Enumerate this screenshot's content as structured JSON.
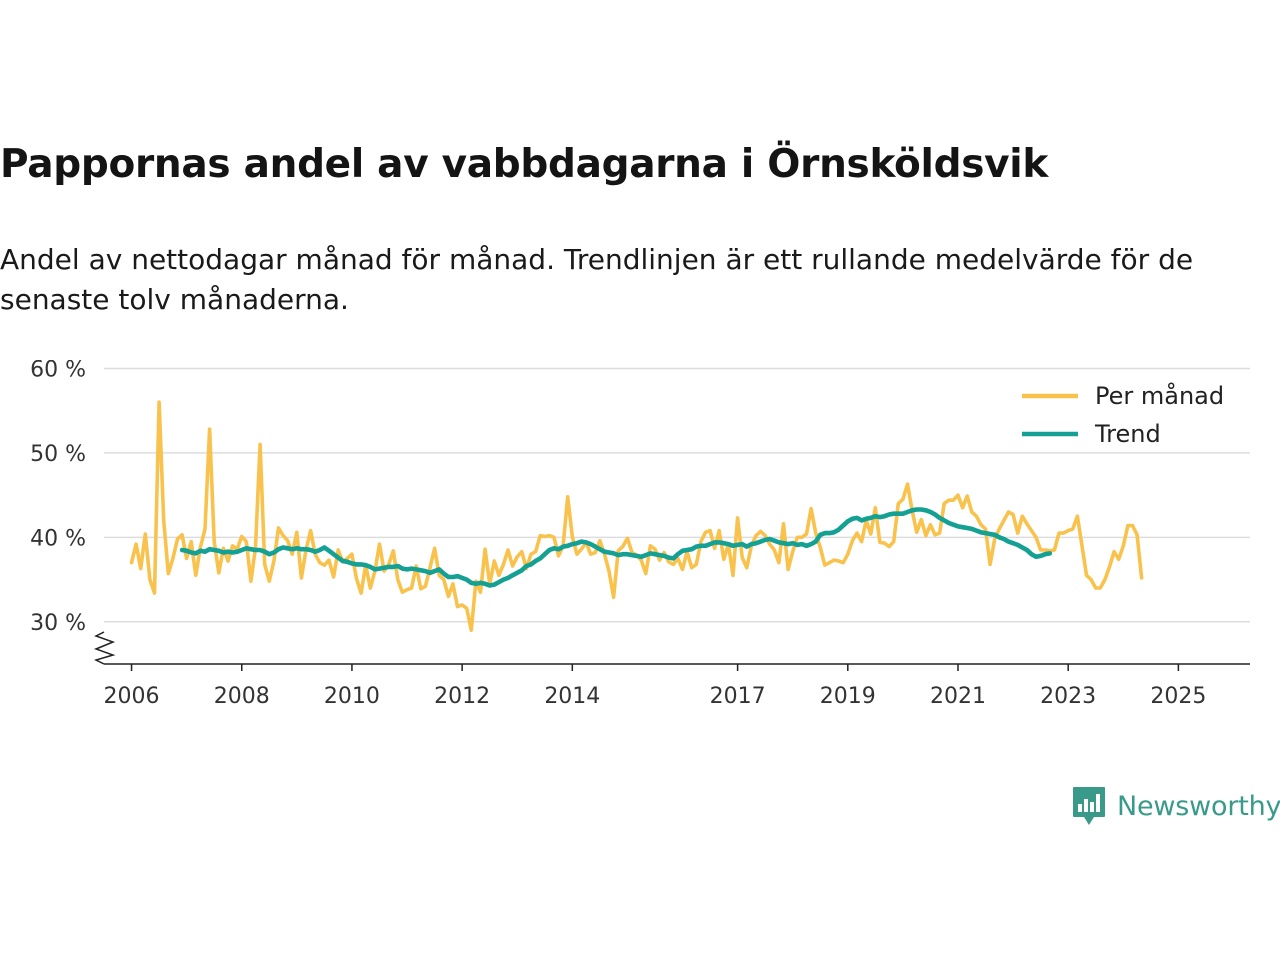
{
  "header": {
    "title": "Pappornas andel av vabbdagarna i Örnsköldsvik",
    "subtitle": "Andel av nettodagar månad för månad. Trendlinjen är ett rullande medelvärde för de senaste tolv månaderna."
  },
  "brand": {
    "name": "Newsworthy",
    "color": "#3a9a8a",
    "icon": "newsworthy-logo-icon"
  },
  "colors": {
    "monthly": "#f9c24d",
    "trend": "#14a093",
    "grid": "#dddddd",
    "axis": "#222222"
  },
  "chart_data": {
    "type": "line",
    "title": "Pappornas andel av vabbdagarna i Örnsköldsvik",
    "xlabel": "",
    "ylabel": "",
    "ylim": [
      25,
      61
    ],
    "yticks": [
      30,
      40,
      50,
      60
    ],
    "ytick_labels": [
      "30 %",
      "40 %",
      "50 %",
      "60 %"
    ],
    "y_axis_break": true,
    "xlim": [
      2005.5,
      2026.3
    ],
    "xticks": [
      2006,
      2008,
      2010,
      2012,
      2014,
      2017,
      2019,
      2021,
      2023,
      2025
    ],
    "xtick_labels": [
      "2006",
      "2008",
      "2010",
      "2012",
      "2014",
      "2017",
      "2019",
      "2021",
      "2023",
      "2025"
    ],
    "legend": {
      "position": "top-right",
      "entries": [
        "Per månad",
        "Trend"
      ]
    },
    "series": [
      {
        "name": "Per månad",
        "color": "#f9c24d",
        "start": 2006.0,
        "step_months": 1,
        "values": [
          37.0,
          39.2,
          36.3,
          40.4,
          35.0,
          33.4,
          56.0,
          42.0,
          35.7,
          37.5,
          39.8,
          40.3,
          37.5,
          39.5,
          35.5,
          38.8,
          41.0,
          52.8,
          39.5,
          35.8,
          38.7,
          37.2,
          39.0,
          38.6,
          40.1,
          39.5,
          34.8,
          38.8,
          51.0,
          36.8,
          34.8,
          37.2,
          41.1,
          40.2,
          39.6,
          38.0,
          40.6,
          35.2,
          38.5,
          40.8,
          38.0,
          37.0,
          36.7,
          37.3,
          35.3,
          38.5,
          37.1,
          37.5,
          38.0,
          35.1,
          33.4,
          36.7,
          34.0,
          36.0,
          39.2,
          36.0,
          36.8,
          38.4,
          35.0,
          33.5,
          33.8,
          34.0,
          36.6,
          33.9,
          34.2,
          36.4,
          38.7,
          35.5,
          35.0,
          33.0,
          34.5,
          31.8,
          32.0,
          31.6,
          29.0,
          34.8,
          33.5,
          38.6,
          34.5,
          37.2,
          35.5,
          36.8,
          38.5,
          36.6,
          37.7,
          38.3,
          36.3,
          38.0,
          38.3,
          40.2,
          40.1,
          40.2,
          40.0,
          37.8,
          39.0,
          44.8,
          40.1,
          38.0,
          38.6,
          39.4,
          38.0,
          38.2,
          39.6,
          38.0,
          36.0,
          32.9,
          38.4,
          38.9,
          39.9,
          38.2,
          37.9,
          37.3,
          35.7,
          39.0,
          38.6,
          37.3,
          38.2,
          37.1,
          36.8,
          37.5,
          36.2,
          38.3,
          36.4,
          36.8,
          39.5,
          40.6,
          40.8,
          38.7,
          40.8,
          37.4,
          39.2,
          35.5,
          42.3,
          37.6,
          36.4,
          39.0,
          40.2,
          40.7,
          40.2,
          39.2,
          38.5,
          37.0,
          41.6,
          36.2,
          38.3,
          40.0,
          40.0,
          40.4,
          43.4,
          40.5,
          38.8,
          36.7,
          37.0,
          37.3,
          37.2,
          37.0,
          38.0,
          39.6,
          40.5,
          39.5,
          42.0,
          40.4,
          43.5,
          39.4,
          39.3,
          38.9,
          39.5,
          44.0,
          44.5,
          46.3,
          43.2,
          40.6,
          42.1,
          40.2,
          41.5,
          40.3,
          40.5,
          44.0,
          44.4,
          44.4,
          45.0,
          43.5,
          44.9,
          43.0,
          42.5,
          41.5,
          41.0,
          36.8,
          39.8,
          41.0,
          42.0,
          43.0,
          42.7,
          40.5,
          42.5,
          41.6,
          40.8,
          40.0,
          38.5,
          38.5,
          38.4,
          38.5,
          40.5,
          40.5,
          40.8,
          41.0,
          42.5,
          39.0,
          35.5,
          35.0,
          34.0,
          34.0,
          35.0,
          36.5,
          38.3,
          37.4,
          39.0,
          41.4,
          41.4,
          40.3,
          35.2
        ]
      },
      {
        "name": "Trend",
        "color": "#14a093",
        "start": 2006.917,
        "step_months": 1,
        "values": [
          38.5,
          38.4,
          38.2,
          38.1,
          38.4,
          38.3,
          38.6,
          38.5,
          38.4,
          38.2,
          38.3,
          38.2,
          38.3,
          38.5,
          38.7,
          38.6,
          38.5,
          38.5,
          38.3,
          38.0,
          38.2,
          38.6,
          38.8,
          38.7,
          38.6,
          38.7,
          38.6,
          38.6,
          38.5,
          38.3,
          38.5,
          38.8,
          38.4,
          38.0,
          37.6,
          37.2,
          37.1,
          36.9,
          36.8,
          36.8,
          36.7,
          36.5,
          36.2,
          36.3,
          36.4,
          36.5,
          36.5,
          36.6,
          36.3,
          36.2,
          36.3,
          36.2,
          36.1,
          36.0,
          35.8,
          36.0,
          36.2,
          35.7,
          35.3,
          35.3,
          35.4,
          35.2,
          35.0,
          34.6,
          34.5,
          34.6,
          34.5,
          34.3,
          34.4,
          34.7,
          35.0,
          35.2,
          35.5,
          35.8,
          36.1,
          36.6,
          36.8,
          37.2,
          37.5,
          38.0,
          38.5,
          38.7,
          38.6,
          38.9,
          39.0,
          39.2,
          39.3,
          39.5,
          39.4,
          39.2,
          38.9,
          38.6,
          38.3,
          38.2,
          38.1,
          37.9,
          38.0,
          38.0,
          37.9,
          37.8,
          37.7,
          37.9,
          38.1,
          38.0,
          37.9,
          37.8,
          37.6,
          37.5,
          38.0,
          38.4,
          38.5,
          38.6,
          38.9,
          39.0,
          39.0,
          39.2,
          39.4,
          39.4,
          39.3,
          39.2,
          39.0,
          39.1,
          39.2,
          38.9,
          39.2,
          39.3,
          39.5,
          39.7,
          39.8,
          39.6,
          39.4,
          39.3,
          39.2,
          39.3,
          39.1,
          39.2,
          39.0,
          39.2,
          39.5,
          40.3,
          40.5,
          40.5,
          40.6,
          40.9,
          41.4,
          41.9,
          42.2,
          42.3,
          42.0,
          42.2,
          42.3,
          42.5,
          42.4,
          42.5,
          42.7,
          42.8,
          42.8,
          42.8,
          43.0,
          43.2,
          43.3,
          43.3,
          43.2,
          43.0,
          42.7,
          42.3,
          42.0,
          41.7,
          41.5,
          41.3,
          41.2,
          41.1,
          41.0,
          40.8,
          40.6,
          40.5,
          40.4,
          40.3,
          40.0,
          39.8,
          39.5,
          39.3,
          39.1,
          38.8,
          38.5,
          38.0,
          37.7,
          37.8,
          38.0,
          38.1
        ]
      }
    ]
  }
}
